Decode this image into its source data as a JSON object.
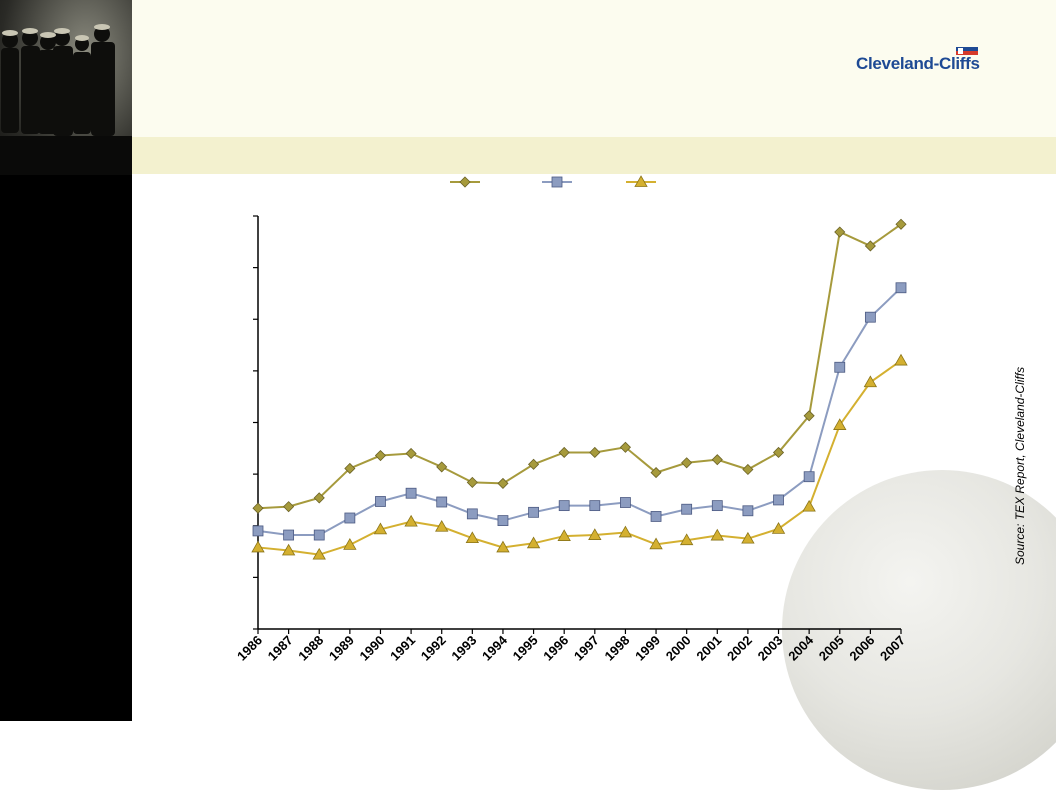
{
  "brand": {
    "logo_text": "Cleveland-Cliffs",
    "logo_color": "#1e4a94",
    "logo_accent": "#d63a2a"
  },
  "source": {
    "label": "Source:",
    "text": "TEX Report, Cleveland-Cliffs"
  },
  "colors": {
    "sidebar": "#000000",
    "header": "#fcfcef",
    "band": "#f3f1cf"
  },
  "chart_data": {
    "type": "line",
    "title": "",
    "xlabel": "",
    "ylabel": "",
    "ylim": [
      0,
      8
    ],
    "y_gridlines": 8,
    "grid": false,
    "legend_position": "top-center",
    "categories": [
      "1986",
      "1987",
      "1988",
      "1989",
      "1990",
      "1991",
      "1992",
      "1993",
      "1994",
      "1995",
      "1996",
      "1997",
      "1998",
      "1999",
      "2000",
      "2001",
      "2002",
      "2003",
      "2004",
      "2005",
      "2006",
      "2007"
    ],
    "series": [
      {
        "marker": "diamond",
        "color": "#a69a3c",
        "values": [
          2.34,
          2.37,
          2.54,
          3.11,
          3.36,
          3.4,
          3.14,
          2.84,
          2.82,
          3.19,
          3.42,
          3.42,
          3.52,
          3.03,
          3.22,
          3.28,
          3.09,
          3.42,
          4.13,
          7.69,
          7.42,
          7.84
        ]
      },
      {
        "marker": "square",
        "color": "#8c9cc0",
        "values": [
          1.9,
          1.82,
          1.82,
          2.15,
          2.47,
          2.63,
          2.46,
          2.23,
          2.1,
          2.26,
          2.39,
          2.39,
          2.45,
          2.18,
          2.32,
          2.39,
          2.29,
          2.5,
          2.95,
          5.07,
          6.04,
          6.61
        ]
      },
      {
        "marker": "triangle",
        "color": "#d4b030",
        "values": [
          1.58,
          1.52,
          1.44,
          1.63,
          1.93,
          2.08,
          1.98,
          1.76,
          1.58,
          1.66,
          1.8,
          1.82,
          1.87,
          1.64,
          1.72,
          1.81,
          1.75,
          1.94,
          2.37,
          3.95,
          4.78,
          5.2
        ]
      }
    ]
  }
}
